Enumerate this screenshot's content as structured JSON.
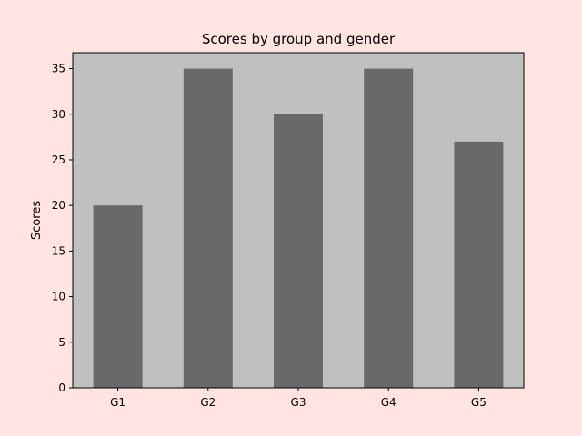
{
  "chart_data": {
    "type": "bar",
    "title": "Scores by group and gender",
    "xlabel": "",
    "ylabel": "Scores",
    "categories": [
      "G1",
      "G2",
      "G3",
      "G4",
      "G5"
    ],
    "values": [
      20,
      35,
      30,
      35,
      27
    ],
    "ylim": [
      0,
      36.75
    ],
    "yticks": [
      0,
      5,
      10,
      15,
      20,
      25,
      30,
      35
    ],
    "grid": false,
    "legend": "none",
    "colors": {
      "figure_background": "#ffe4e1",
      "plot_background": "#c0c0c0",
      "bar": "#696969",
      "axis": "#000000"
    }
  }
}
